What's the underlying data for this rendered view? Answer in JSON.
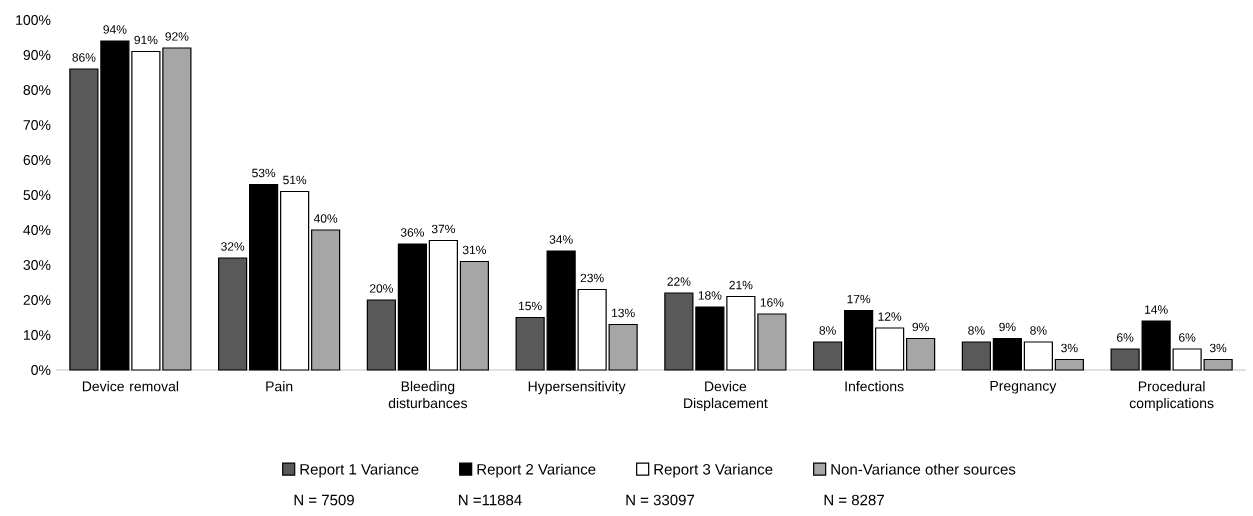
{
  "chart_data": {
    "type": "bar",
    "categories": [
      "Device removal",
      "Pain",
      "Bleeding disturbances",
      "Hypersensitivity",
      "Device Displacement",
      "Infections",
      "Pregnancy",
      "Procedural complications"
    ],
    "series": [
      {
        "name": "Report 1 Variance",
        "color": "#595959",
        "values": [
          86,
          32,
          20,
          15,
          22,
          8,
          8,
          6
        ],
        "value_labels": [
          "86%",
          "32%",
          "20%",
          "15%",
          "22%",
          "8%",
          "8%",
          "6%"
        ]
      },
      {
        "name": "Report 2 Variance",
        "color": "#000000",
        "values": [
          94,
          53,
          36,
          34,
          18,
          17,
          9,
          14
        ],
        "value_labels": [
          "94%",
          "53%",
          "36%",
          "34%",
          "18%",
          "17%",
          "9%",
          "14%"
        ]
      },
      {
        "name": "Report 3 Variance",
        "color": "#ffffff",
        "values": [
          91,
          51,
          37,
          23,
          21,
          12,
          8,
          6
        ],
        "value_labels": [
          "91%",
          "51%",
          "37%",
          "23%",
          "21%",
          "12%",
          "8%",
          "6%"
        ]
      },
      {
        "name": "Non-Variance other sources",
        "color": "#a6a6a6",
        "values": [
          92,
          40,
          31,
          13,
          16,
          9,
          3,
          3
        ],
        "value_labels": [
          "92%",
          "40%",
          "31%",
          "13%",
          "16%",
          "9%",
          "3%",
          "3%"
        ]
      }
    ],
    "ylim": [
      0,
      100
    ],
    "yticks": [
      {
        "value": 0,
        "label": "0%"
      },
      {
        "value": 10,
        "label": "10%"
      },
      {
        "value": 20,
        "label": "20%"
      },
      {
        "value": 30,
        "label": "30%"
      },
      {
        "value": 40,
        "label": "40%"
      },
      {
        "value": 50,
        "label": "50%"
      },
      {
        "value": 60,
        "label": "60%"
      },
      {
        "value": 70,
        "label": "70%"
      },
      {
        "value": 80,
        "label": "80%"
      },
      {
        "value": 90,
        "label": "90%"
      },
      {
        "value": 100,
        "label": "100%"
      }
    ],
    "grid": false,
    "legend": "bottom",
    "annotations": [
      "N = 7509",
      "N =11884",
      "N = 33097",
      "N = 8287"
    ]
  }
}
